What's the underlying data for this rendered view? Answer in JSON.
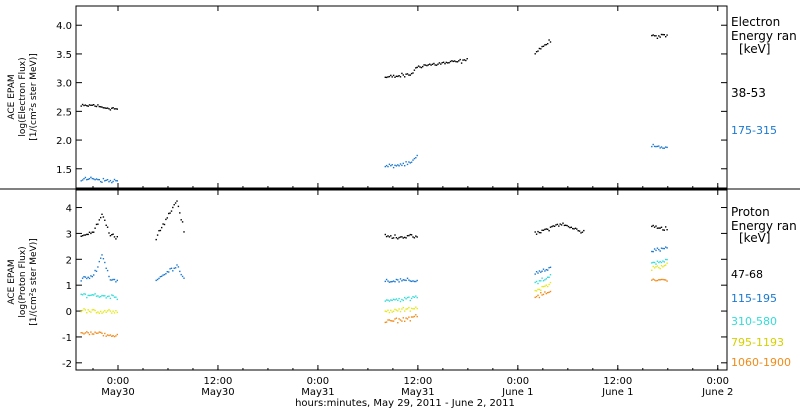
{
  "chart_data": [
    {
      "type": "scatter",
      "panel": "electron",
      "ylabel": [
        "ACE EPAM",
        "log(Electron Flux)",
        "[1/(cm²s ster MeV)]"
      ],
      "ylim": [
        1.2,
        4.3
      ],
      "yticks": [
        1.5,
        2.0,
        2.5,
        3.0,
        3.5,
        4.0
      ],
      "ytick_labels": [
        "1.5",
        "2.0",
        "2.5",
        "3.0",
        "3.5",
        "4.0"
      ],
      "legend_title": [
        "Electron",
        "Energy ran",
        "[keV]"
      ],
      "x_unit": "hours since 2011-05-29 00:00",
      "series": [
        {
          "name": "38-53",
          "color": "#000000",
          "points": [
            [
              19.5,
              2.6
            ],
            [
              21,
              2.62
            ],
            [
              22,
              2.58
            ],
            [
              23,
              2.57
            ],
            [
              24,
              2.55
            ],
            [
              28.5,
              2.6
            ],
            [
              32,
              2.65
            ],
            [
              36,
              2.7
            ],
            [
              40,
              2.75
            ],
            [
              44,
              2.8
            ],
            [
              48,
              2.9
            ],
            [
              52,
              3.0
            ],
            [
              56,
              3.1
            ],
            [
              59,
              3.15
            ],
            [
              60,
              3.3
            ],
            [
              63,
              3.35
            ],
            [
              66,
              3.4
            ],
            [
              70,
              3.45
            ],
            [
              74,
              3.55
            ],
            [
              76,
              3.75
            ],
            [
              80,
              3.8
            ],
            [
              84,
              3.8
            ],
            [
              88,
              3.82
            ],
            [
              90,
              3.82
            ],
            [
              103,
              3.88
            ],
            [
              106,
              3.95
            ],
            [
              108,
              3.98
            ],
            [
              110,
              3.97
            ],
            [
              114,
              3.95
            ],
            [
              118,
              3.96
            ]
          ]
        },
        {
          "name": "175-315",
          "color": "#1a78d0",
          "points": [
            [
              19.5,
              1.32
            ],
            [
              21,
              1.35
            ],
            [
              22,
              1.31
            ],
            [
              23,
              1.3
            ],
            [
              24,
              1.3
            ],
            [
              28.5,
              1.35
            ],
            [
              32,
              1.35
            ],
            [
              36,
              1.38
            ],
            [
              40,
              1.38
            ],
            [
              44,
              1.4
            ],
            [
              48,
              1.42
            ],
            [
              52,
              1.47
            ],
            [
              56,
              1.55
            ],
            [
              59,
              1.6
            ],
            [
              60,
              1.75
            ],
            [
              64,
              1.78
            ],
            [
              68,
              1.8
            ],
            [
              72,
              1.83
            ],
            [
              76,
              1.88
            ],
            [
              80,
              1.9
            ],
            [
              84,
              1.92
            ],
            [
              88,
              1.9
            ],
            [
              90,
              1.88
            ],
            [
              103,
              1.82
            ],
            [
              106,
              1.8
            ],
            [
              110,
              1.78
            ],
            [
              114,
              1.77
            ],
            [
              118,
              1.75
            ]
          ]
        }
      ]
    },
    {
      "type": "scatter",
      "panel": "proton",
      "ylabel": [
        "ACE EPAM",
        "log(Proton Flux)",
        "[1/(cm²s ster MeV)]"
      ],
      "ylim": [
        -2.2,
        4.6
      ],
      "yticks": [
        -2,
        -1,
        0,
        1,
        2,
        3,
        4
      ],
      "ytick_labels": [
        "-2",
        "-1",
        "0",
        "1",
        "2",
        "3",
        "4"
      ],
      "legend_title": [
        "Proton",
        "Energy ran",
        "[keV]"
      ],
      "x_unit": "hours since 2011-05-29 00:00",
      "series": [
        {
          "name": "47-68",
          "color": "#000000",
          "points": [
            [
              19.5,
              2.95
            ],
            [
              21,
              3.1
            ],
            [
              22,
              3.8
            ],
            [
              23,
              2.95
            ],
            [
              24,
              2.9
            ],
            [
              28.5,
              2.9
            ],
            [
              31,
              4.3
            ],
            [
              32,
              2.92
            ],
            [
              40,
              2.9
            ],
            [
              48,
              2.9
            ],
            [
              56,
              2.9
            ],
            [
              59,
              2.9
            ],
            [
              60,
              2.9
            ],
            [
              66,
              2.9
            ],
            [
              70,
              2.95
            ],
            [
              74,
              3.0
            ],
            [
              77,
              3.4
            ],
            [
              80,
              3.05
            ],
            [
              84,
              3.1
            ],
            [
              88,
              3.3
            ],
            [
              90,
              3.2
            ],
            [
              103,
              3.75
            ],
            [
              106,
              3.85
            ],
            [
              110,
              3.88
            ],
            [
              114,
              3.85
            ],
            [
              118,
              3.95
            ]
          ]
        },
        {
          "name": "115-195",
          "color": "#1a78d0",
          "points": [
            [
              19.5,
              1.25
            ],
            [
              21,
              1.4
            ],
            [
              22,
              2.2
            ],
            [
              23,
              1.25
            ],
            [
              24,
              1.2
            ],
            [
              28.5,
              1.2
            ],
            [
              31,
              1.8
            ],
            [
              32,
              1.2
            ],
            [
              40,
              1.15
            ],
            [
              48,
              1.15
            ],
            [
              56,
              1.2
            ],
            [
              59,
              1.2
            ],
            [
              60,
              1.2
            ],
            [
              66,
              1.25
            ],
            [
              70,
              1.35
            ],
            [
              74,
              1.5
            ],
            [
              76,
              1.7
            ],
            [
              80,
              2.0
            ],
            [
              84,
              2.2
            ],
            [
              88,
              2.35
            ],
            [
              90,
              2.45
            ],
            [
              103,
              3.4
            ],
            [
              106,
              3.5
            ],
            [
              110,
              3.5
            ],
            [
              114,
              3.4
            ],
            [
              118,
              3.5
            ]
          ]
        },
        {
          "name": "310-580",
          "color": "#33dcd8",
          "points": [
            [
              19.5,
              0.65
            ],
            [
              21,
              0.65
            ],
            [
              22,
              0.6
            ],
            [
              23,
              0.6
            ],
            [
              24,
              0.55
            ],
            [
              28.5,
              0.3
            ],
            [
              32,
              0.3
            ],
            [
              40,
              0.3
            ],
            [
              48,
              0.35
            ],
            [
              56,
              0.45
            ],
            [
              59,
              0.5
            ],
            [
              60,
              0.6
            ],
            [
              66,
              0.75
            ],
            [
              70,
              0.85
            ],
            [
              74,
              1.1
            ],
            [
              76,
              1.4
            ],
            [
              80,
              1.6
            ],
            [
              84,
              1.8
            ],
            [
              88,
              1.9
            ],
            [
              90,
              2.0
            ],
            [
              103,
              2.9
            ],
            [
              106,
              3.05
            ],
            [
              110,
              3.0
            ],
            [
              114,
              2.9
            ],
            [
              118,
              3.0
            ]
          ]
        },
        {
          "name": "795-1193",
          "color": "#e4e818",
          "points": [
            [
              19.5,
              0.05
            ],
            [
              21,
              0.05
            ],
            [
              22,
              0.0
            ],
            [
              23,
              0.0
            ],
            [
              24,
              -0.05
            ],
            [
              28.5,
              -0.3
            ],
            [
              32,
              -0.3
            ],
            [
              40,
              -0.25
            ],
            [
              48,
              -0.15
            ],
            [
              56,
              0.0
            ],
            [
              59,
              0.1
            ],
            [
              60,
              0.2
            ],
            [
              66,
              0.35
            ],
            [
              70,
              0.45
            ],
            [
              74,
              0.8
            ],
            [
              76,
              1.1
            ],
            [
              80,
              1.35
            ],
            [
              84,
              1.55
            ],
            [
              88,
              1.7
            ],
            [
              90,
              1.8
            ],
            [
              103,
              2.4
            ],
            [
              106,
              2.55
            ],
            [
              110,
              2.5
            ],
            [
              114,
              2.4
            ],
            [
              118,
              2.5
            ]
          ]
        },
        {
          "name": "1060-1900",
          "color": "#f08a18",
          "points": [
            [
              19.5,
              -0.8
            ],
            [
              21,
              -0.85
            ],
            [
              22,
              -0.85
            ],
            [
              23,
              -0.9
            ],
            [
              24,
              -0.95
            ],
            [
              28.5,
              -0.9
            ],
            [
              32,
              -1.0
            ],
            [
              40,
              -0.8
            ],
            [
              48,
              -0.6
            ],
            [
              56,
              -0.4
            ],
            [
              59,
              -0.25
            ],
            [
              60,
              -0.1
            ],
            [
              66,
              0.0
            ],
            [
              70,
              0.2
            ],
            [
              74,
              0.55
            ],
            [
              76,
              0.8
            ],
            [
              80,
              1.0
            ],
            [
              84,
              1.15
            ],
            [
              88,
              1.2
            ],
            [
              90,
              1.25
            ],
            [
              103,
              1.75
            ],
            [
              106,
              1.95
            ],
            [
              110,
              1.85
            ],
            [
              114,
              1.8
            ],
            [
              118,
              1.9
            ]
          ]
        }
      ]
    }
  ],
  "xaxis": {
    "range": [
      12,
      132
    ],
    "ticks": [
      {
        "x": 24,
        "time": "0:00",
        "date": "May30"
      },
      {
        "x": 36,
        "time": "12:00",
        "date": "May30"
      },
      {
        "x": 48,
        "time": "0:00",
        "date": "May31"
      },
      {
        "x": 60,
        "time": "12:00",
        "date": "May31"
      },
      {
        "x": 72,
        "time": "0:00",
        "date": "June 1"
      },
      {
        "x": 84,
        "time": "12:00",
        "date": "June 1"
      },
      {
        "x": 96,
        "time": "0:00",
        "date": "June 2"
      }
    ],
    "label": "hours:minutes, May 29, 2011 - June  2, 2011"
  }
}
